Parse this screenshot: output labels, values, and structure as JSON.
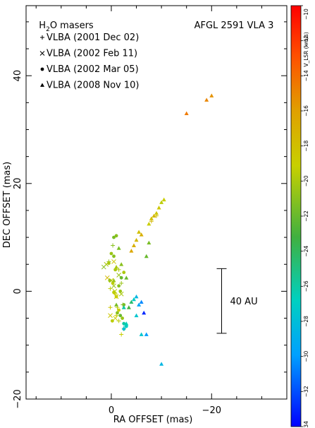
{
  "chart_data": {
    "type": "scatter",
    "title": "AFGL 2591 VLA 3",
    "legend_title": "H2O masers",
    "xlabel": "RA OFFSET (mas)",
    "ylabel": "DEC OFFSET (mas)",
    "xlim": [
      17,
      -35
    ],
    "ylim": [
      -20,
      53
    ],
    "x_ticks": [
      0,
      -20
    ],
    "x_tick_labels": [
      "0",
      "−20"
    ],
    "y_ticks": [
      -20,
      0,
      20,
      40
    ],
    "y_tick_labels": [
      "−20",
      "0",
      "20",
      "40"
    ],
    "colorbar": {
      "label": "V_LSR (km/s)",
      "vmin": -34,
      "vmax": -10,
      "ticks": [
        -10,
        -12,
        -14,
        -16,
        -18,
        -20,
        -22,
        -24,
        -26,
        -28,
        -30,
        -32,
        -34
      ],
      "tick_labels": [
        "−10",
        "−12",
        "−14",
        "−16",
        "−18",
        "−20",
        "−22",
        "−24",
        "−26",
        "−28",
        "−30",
        "−32",
        "−34"
      ]
    },
    "scale_bar": {
      "label": "40 AU",
      "x": -22,
      "y_top": 4.2,
      "y_bottom": -7.8
    },
    "legend": [
      {
        "label": "VLBA (2001 Dec 02)",
        "marker": "plus"
      },
      {
        "label": "VLBA (2002 Feb 11)",
        "marker": "cross"
      },
      {
        "label": "VLBA (2002 Mar 05)",
        "marker": "dot"
      },
      {
        "label": "VLBA (2008 Nov 10)",
        "marker": "triangle"
      }
    ],
    "series": [
      {
        "name": "VLBA (2001 Dec 02)",
        "marker": "plus",
        "points": [
          {
            "x": 0.5,
            "y": 5.5,
            "v": -20.5
          },
          {
            "x": -0.3,
            "y": 8.5,
            "v": -21.0
          },
          {
            "x": -1.5,
            "y": 4.0,
            "v": -20.0
          },
          {
            "x": -2.0,
            "y": 1.5,
            "v": -20.5
          },
          {
            "x": 0.2,
            "y": 0.5,
            "v": -19.5
          },
          {
            "x": -0.8,
            "y": -0.5,
            "v": -19.0
          },
          {
            "x": -1.2,
            "y": -3.0,
            "v": -19.5
          },
          {
            "x": -1.0,
            "y": -4.5,
            "v": -19.0
          },
          {
            "x": 0.2,
            "y": -3.0,
            "v": -18.5
          },
          {
            "x": -1.5,
            "y": -5.5,
            "v": -19.5
          },
          {
            "x": -2.5,
            "y": -7.0,
            "v": -20.0
          },
          {
            "x": -2.0,
            "y": -8.0,
            "v": -19.0
          },
          {
            "x": -9.0,
            "y": 14.0,
            "v": -18.0
          },
          {
            "x": -8.0,
            "y": 13.0,
            "v": -17.5
          },
          {
            "x": -2.8,
            "y": -6.5,
            "v": -27.5
          },
          {
            "x": -2.3,
            "y": -2.5,
            "v": -21.0
          }
        ]
      },
      {
        "name": "VLBA (2002 Feb 11)",
        "marker": "cross",
        "points": [
          {
            "x": 1.0,
            "y": 5.0,
            "v": -20.0
          },
          {
            "x": 0.0,
            "y": 2.0,
            "v": -19.0
          },
          {
            "x": -0.5,
            "y": 1.0,
            "v": -20.5
          },
          {
            "x": -0.7,
            "y": 0.0,
            "v": -19.5
          },
          {
            "x": -1.0,
            "y": -1.0,
            "v": -19.0
          },
          {
            "x": 0.2,
            "y": -4.5,
            "v": -18.5
          },
          {
            "x": -0.8,
            "y": -5.0,
            "v": -19.0
          },
          {
            "x": -1.5,
            "y": 3.0,
            "v": -20.5
          },
          {
            "x": -2.0,
            "y": -0.5,
            "v": -20.0
          },
          {
            "x": 1.5,
            "y": 4.5,
            "v": -21.0
          },
          {
            "x": -0.5,
            "y": 5.5,
            "v": -18.5
          },
          {
            "x": 0.8,
            "y": 2.5,
            "v": -17.5
          }
        ]
      },
      {
        "name": "VLBA (2002 Mar 05)",
        "marker": "dot",
        "points": [
          {
            "x": -0.5,
            "y": 10.0,
            "v": -21.5
          },
          {
            "x": -1.0,
            "y": 10.3,
            "v": -21.0
          },
          {
            "x": 0.0,
            "y": 7.0,
            "v": -20.5
          },
          {
            "x": -0.5,
            "y": 6.5,
            "v": -21.0
          },
          {
            "x": 0.5,
            "y": 5.2,
            "v": -20.0
          },
          {
            "x": 0.3,
            "y": 2.0,
            "v": -20.5
          },
          {
            "x": -0.3,
            "y": 1.5,
            "v": -19.5
          },
          {
            "x": -1.5,
            "y": 1.0,
            "v": -21.0
          },
          {
            "x": -1.8,
            "y": 0.0,
            "v": -20.5
          },
          {
            "x": -2.5,
            "y": 3.5,
            "v": -20.0
          },
          {
            "x": -1.0,
            "y": -1.0,
            "v": -19.0
          },
          {
            "x": -0.5,
            "y": -0.2,
            "v": -19.5
          },
          {
            "x": -1.2,
            "y": -4.0,
            "v": -21.0
          },
          {
            "x": -1.8,
            "y": -4.5,
            "v": -22.0
          },
          {
            "x": -2.2,
            "y": -5.0,
            "v": -20.5
          },
          {
            "x": -2.5,
            "y": -6.0,
            "v": -26.0
          },
          {
            "x": -3.0,
            "y": -6.5,
            "v": -27.0
          },
          {
            "x": -2.5,
            "y": -7.0,
            "v": -28.0
          },
          {
            "x": -1.5,
            "y": -3.5,
            "v": -19.0
          },
          {
            "x": -2.0,
            "y": 2.5,
            "v": -22.0
          },
          {
            "x": -0.8,
            "y": 4.0,
            "v": -20.0
          },
          {
            "x": -2.5,
            "y": -2.5,
            "v": -21.5
          },
          {
            "x": -0.2,
            "y": -5.5,
            "v": -19.5
          }
        ]
      },
      {
        "name": "VLBA (2008 Nov 10)",
        "marker": "triangle",
        "points": [
          {
            "x": -15.0,
            "y": 33.0,
            "v": -14.5
          },
          {
            "x": -19.0,
            "y": 35.5,
            "v": -15.0
          },
          {
            "x": -20.0,
            "y": 36.3,
            "v": -15.5
          },
          {
            "x": -10.5,
            "y": 17.0,
            "v": -19.0
          },
          {
            "x": -10.0,
            "y": 16.5,
            "v": -19.5
          },
          {
            "x": -9.5,
            "y": 15.5,
            "v": -18.5
          },
          {
            "x": -8.5,
            "y": 14.0,
            "v": -17.5
          },
          {
            "x": -8.0,
            "y": 13.5,
            "v": -18.0
          },
          {
            "x": -7.5,
            "y": 12.5,
            "v": -19.0
          },
          {
            "x": -5.5,
            "y": 11.0,
            "v": -18.0
          },
          {
            "x": -5.0,
            "y": 9.5,
            "v": -17.5
          },
          {
            "x": -4.5,
            "y": 8.5,
            "v": -17.0
          },
          {
            "x": -4.0,
            "y": 7.5,
            "v": -16.5
          },
          {
            "x": -7.5,
            "y": 9.0,
            "v": -21.5
          },
          {
            "x": -7.0,
            "y": 6.5,
            "v": -22.0
          },
          {
            "x": -1.5,
            "y": 8.0,
            "v": -21.5
          },
          {
            "x": -0.5,
            "y": 2.0,
            "v": -20.5
          },
          {
            "x": -2.0,
            "y": 5.0,
            "v": -21.0
          },
          {
            "x": -3.0,
            "y": 2.5,
            "v": -22.0
          },
          {
            "x": -1.0,
            "y": -2.5,
            "v": -21.5
          },
          {
            "x": -3.5,
            "y": -3.0,
            "v": -23.0
          },
          {
            "x": -4.0,
            "y": -2.0,
            "v": -24.5
          },
          {
            "x": -4.5,
            "y": -1.5,
            "v": -27.0
          },
          {
            "x": -5.0,
            "y": -1.0,
            "v": -28.5
          },
          {
            "x": -5.5,
            "y": -2.5,
            "v": -29.5
          },
          {
            "x": -6.0,
            "y": -2.0,
            "v": -30.5
          },
          {
            "x": -6.5,
            "y": -4.0,
            "v": -33.0
          },
          {
            "x": -5.0,
            "y": -4.5,
            "v": -27.5
          },
          {
            "x": -6.0,
            "y": -8.0,
            "v": -27.5
          },
          {
            "x": -7.0,
            "y": -8.0,
            "v": -30.0
          },
          {
            "x": -10.0,
            "y": -13.5,
            "v": -28.5
          },
          {
            "x": -2.5,
            "y": -3.0,
            "v": -26.0
          },
          {
            "x": -3.0,
            "y": -6.0,
            "v": -26.5
          },
          {
            "x": -1.0,
            "y": 4.5,
            "v": -20.0
          },
          {
            "x": -9.0,
            "y": 14.5,
            "v": -18.5
          },
          {
            "x": -6.0,
            "y": 10.5,
            "v": -17.0
          }
        ]
      }
    ]
  }
}
